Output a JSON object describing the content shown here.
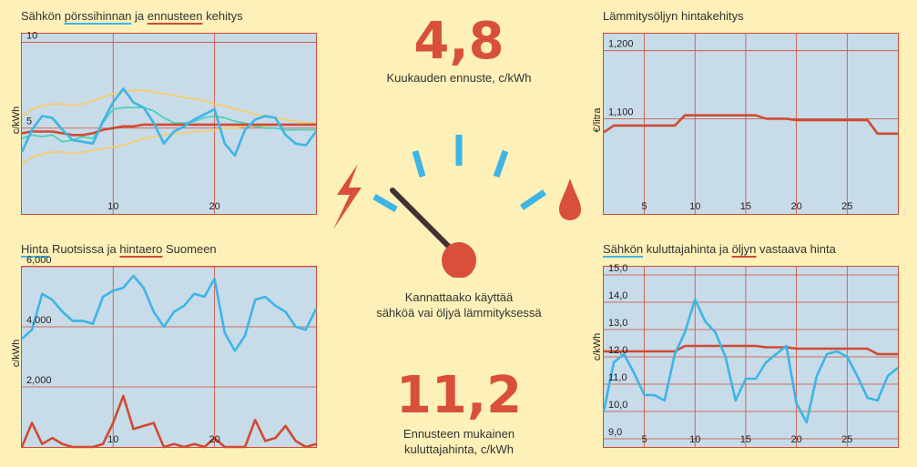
{
  "colors": {
    "blue": "#3db5e5",
    "red": "#cf4b34",
    "yellow": "#f4cd6c",
    "teal": "#4ad2c0",
    "panel": "#c8dbe8",
    "bg": "#fdf0b8"
  },
  "center": {
    "month_forecast_value": "4,8",
    "month_forecast_label": "Kuukauden ennuste, c/kWh",
    "gauge_question_line1": "Kannattaako käyttää",
    "gauge_question_line2": "sähköä vai öljyä lämmityksessä",
    "consumer_price_value": "11,2",
    "consumer_price_line1": "Ennusteen mukainen",
    "consumer_price_line2": "kuluttajahinta, c/kWh",
    "gauge_fraction": 0.2,
    "icons": {
      "left": "lightning-icon",
      "right": "oil-drop-icon"
    }
  },
  "chart_data": [
    {
      "id": "c1",
      "type": "line",
      "title_parts": [
        {
          "text": "Sähkön ",
          "u": ""
        },
        {
          "text": "pörssihinnan",
          "u": "blue"
        },
        {
          "text": " ja ",
          "u": ""
        },
        {
          "text": "ennusteen",
          "u": "red"
        },
        {
          "text": " kehitys",
          "u": ""
        }
      ],
      "ylabel": "c/kWh",
      "xlim": [
        1,
        30
      ],
      "ylim": [
        0,
        10.5
      ],
      "xticks": [
        10,
        20
      ],
      "yticks": [
        5,
        10
      ],
      "series": [
        {
          "color": "yellow",
          "x": [
            1,
            2,
            3,
            4,
            5,
            6,
            7,
            8,
            9,
            10,
            11,
            12,
            13,
            14,
            15,
            16,
            17,
            18,
            19,
            20,
            21,
            22,
            23,
            24,
            25,
            26,
            27,
            28,
            29,
            30
          ],
          "y": [
            5.7,
            6.1,
            6.3,
            6.4,
            6.4,
            6.3,
            6.4,
            6.6,
            6.8,
            7.0,
            7.1,
            7.2,
            7.2,
            7.1,
            7.0,
            6.9,
            6.8,
            6.7,
            6.6,
            6.4,
            6.3,
            6.1,
            6.0,
            5.8,
            5.7,
            5.6,
            5.5,
            5.4,
            5.3,
            5.3
          ]
        },
        {
          "color": "yellow",
          "x": [
            1,
            2,
            3,
            4,
            5,
            6,
            7,
            8,
            9,
            10,
            11,
            12,
            13,
            14,
            15,
            16,
            17,
            18,
            19,
            20,
            21,
            22,
            23,
            24,
            25,
            26,
            27,
            28,
            29,
            30
          ],
          "y": [
            2.9,
            3.3,
            3.5,
            3.6,
            3.6,
            3.5,
            3.6,
            3.7,
            3.8,
            3.9,
            4.0,
            4.2,
            4.4,
            4.5,
            4.6,
            4.7,
            4.7,
            4.8,
            4.8,
            4.9,
            5.0,
            5.0,
            5.1,
            5.1,
            5.1,
            5.2,
            5.2,
            5.2,
            5.2,
            5.2
          ]
        },
        {
          "color": "teal",
          "x": [
            1,
            2,
            3,
            4,
            5,
            6,
            7,
            8,
            9,
            10,
            11,
            12,
            13,
            14,
            15,
            16,
            17,
            18,
            19,
            20,
            21,
            22,
            23,
            24,
            25,
            26,
            27,
            28,
            29,
            30
          ],
          "y": [
            4.4,
            4.6,
            4.5,
            4.6,
            4.2,
            4.3,
            4.5,
            4.4,
            5.3,
            6.1,
            6.2,
            6.2,
            6.2,
            6.0,
            5.6,
            5.3,
            5.3,
            5.4,
            5.6,
            5.7,
            5.6,
            5.4,
            5.3,
            5.1,
            5.0,
            5.0,
            4.9,
            4.9,
            4.9,
            4.9
          ]
        },
        {
          "color": "red",
          "x": [
            1,
            2,
            3,
            4,
            5,
            6,
            7,
            8,
            9,
            10,
            11,
            12,
            13,
            14,
            15,
            16,
            17,
            18,
            19,
            20,
            21,
            22,
            23,
            24,
            25,
            26,
            27,
            28,
            29,
            30
          ],
          "y": [
            4.7,
            4.8,
            4.8,
            4.8,
            4.7,
            4.6,
            4.6,
            4.7,
            4.9,
            5.0,
            5.1,
            5.1,
            5.2,
            5.2,
            5.2,
            5.2,
            5.2,
            5.2,
            5.2,
            5.2,
            5.2,
            5.2,
            5.2,
            5.2,
            5.2,
            5.2,
            5.2,
            5.2,
            5.2,
            5.2
          ]
        },
        {
          "color": "blue",
          "x": [
            1,
            2,
            3,
            4,
            5,
            6,
            7,
            8,
            9,
            10,
            11,
            12,
            13,
            14,
            15,
            16,
            17,
            18,
            19,
            20,
            21,
            22,
            23,
            24,
            25,
            26,
            27,
            28,
            29,
            30
          ],
          "y": [
            3.6,
            4.9,
            5.7,
            5.6,
            4.9,
            4.3,
            4.2,
            4.1,
            5.4,
            6.5,
            7.3,
            6.5,
            6.2,
            5.3,
            4.1,
            4.8,
            5.1,
            5.5,
            5.8,
            6.1,
            4.1,
            3.4,
            4.9,
            5.5,
            5.7,
            5.6,
            4.6,
            4.1,
            4.0,
            4.8
          ]
        }
      ]
    },
    {
      "id": "c2",
      "type": "line",
      "title_parts": [
        {
          "text": "Lämmitysöljyn hintakehitys",
          "u": ""
        }
      ],
      "ylabel": "€/litra",
      "xlim": [
        1,
        30
      ],
      "ylim": [
        0.96,
        1.225
      ],
      "xticks": [
        5,
        10,
        15,
        20,
        25
      ],
      "yticks": [
        1.1,
        1.2
      ],
      "ytick_labels": [
        "1,100",
        "1,200"
      ],
      "series": [
        {
          "color": "red",
          "x": [
            1,
            2,
            3,
            4,
            5,
            6,
            7,
            8,
            9,
            10,
            11,
            12,
            13,
            14,
            15,
            16,
            17,
            18,
            19,
            20,
            21,
            22,
            23,
            24,
            25,
            26,
            27,
            28,
            29,
            30
          ],
          "y": [
            1.08,
            1.09,
            1.09,
            1.09,
            1.09,
            1.09,
            1.09,
            1.09,
            1.105,
            1.105,
            1.105,
            1.105,
            1.105,
            1.105,
            1.105,
            1.105,
            1.1,
            1.1,
            1.1,
            1.098,
            1.098,
            1.098,
            1.098,
            1.098,
            1.098,
            1.098,
            1.098,
            1.078,
            1.078,
            1.078
          ]
        }
      ]
    },
    {
      "id": "c3",
      "type": "line",
      "title_parts": [
        {
          "text": "Hinta",
          "u": "blue"
        },
        {
          "text": " Ruotsissa ja ",
          "u": ""
        },
        {
          "text": "hintaero",
          "u": "red"
        },
        {
          "text": " Suomeen",
          "u": ""
        }
      ],
      "ylabel": "c/kWh",
      "xlim": [
        1,
        30
      ],
      "ylim": [
        0,
        6.0
      ],
      "xticks": [
        10,
        20
      ],
      "yticks": [
        2,
        4,
        6
      ],
      "ytick_labels": [
        "2,000",
        "4,000",
        "6,000"
      ],
      "series": [
        {
          "color": "blue",
          "x": [
            1,
            2,
            3,
            4,
            5,
            6,
            7,
            8,
            9,
            10,
            11,
            12,
            13,
            14,
            15,
            16,
            17,
            18,
            19,
            20,
            21,
            22,
            23,
            24,
            25,
            26,
            27,
            28,
            29,
            30
          ],
          "y": [
            3.6,
            3.9,
            5.1,
            4.9,
            4.5,
            4.2,
            4.2,
            4.1,
            5.0,
            5.2,
            5.3,
            5.7,
            5.3,
            4.5,
            4.0,
            4.5,
            4.7,
            5.1,
            5.0,
            5.6,
            3.8,
            3.2,
            3.7,
            4.9,
            5.0,
            4.7,
            4.5,
            4.0,
            3.9,
            4.6
          ]
        },
        {
          "color": "red",
          "x": [
            1,
            2,
            3,
            4,
            5,
            6,
            7,
            8,
            9,
            10,
            11,
            12,
            13,
            14,
            15,
            16,
            17,
            18,
            19,
            20,
            21,
            22,
            23,
            24,
            25,
            26,
            27,
            28,
            29,
            30
          ],
          "y": [
            0.0,
            0.8,
            0.1,
            0.3,
            0.1,
            0.0,
            0.0,
            0.0,
            0.1,
            0.8,
            1.7,
            0.6,
            0.7,
            0.8,
            0.0,
            0.1,
            0.0,
            0.1,
            0.0,
            0.3,
            0.0,
            0.0,
            0.0,
            0.9,
            0.2,
            0.3,
            0.7,
            0.2,
            0.0,
            0.1
          ]
        }
      ]
    },
    {
      "id": "c4",
      "type": "line",
      "title_parts": [
        {
          "text": "Sähkön",
          "u": "blue"
        },
        {
          "text": " kuluttajahinta ja ",
          "u": ""
        },
        {
          "text": "öljyn",
          "u": "red"
        },
        {
          "text": " vastaava hinta",
          "u": ""
        }
      ],
      "ylabel": "c/kWh",
      "xlim": [
        1,
        30
      ],
      "ylim": [
        8.7,
        15.3
      ],
      "xticks": [
        5,
        10,
        15,
        20,
        25
      ],
      "yticks": [
        9,
        10,
        11,
        12,
        13,
        14,
        15
      ],
      "ytick_labels": [
        "9,0",
        "10,0",
        "11,0",
        "12,0",
        "13,0",
        "14,0",
        "15,0"
      ],
      "series": [
        {
          "color": "red",
          "x": [
            1,
            2,
            3,
            4,
            5,
            6,
            7,
            8,
            9,
            10,
            11,
            12,
            13,
            14,
            15,
            16,
            17,
            18,
            19,
            20,
            21,
            22,
            23,
            24,
            25,
            26,
            27,
            28,
            29,
            30
          ],
          "y": [
            12.2,
            12.2,
            12.2,
            12.2,
            12.2,
            12.2,
            12.2,
            12.2,
            12.4,
            12.4,
            12.4,
            12.4,
            12.4,
            12.4,
            12.4,
            12.4,
            12.35,
            12.35,
            12.35,
            12.3,
            12.3,
            12.3,
            12.3,
            12.3,
            12.3,
            12.3,
            12.3,
            12.1,
            12.1,
            12.1
          ]
        },
        {
          "color": "blue",
          "x": [
            1,
            2,
            3,
            4,
            5,
            6,
            7,
            8,
            9,
            10,
            11,
            12,
            13,
            14,
            15,
            16,
            17,
            18,
            19,
            20,
            21,
            22,
            23,
            24,
            25,
            26,
            27,
            28,
            29,
            30
          ],
          "y": [
            10.0,
            11.8,
            12.1,
            11.4,
            10.6,
            10.6,
            10.4,
            12.1,
            12.9,
            14.1,
            13.3,
            12.9,
            12.0,
            10.4,
            11.2,
            11.2,
            11.8,
            12.1,
            12.4,
            10.3,
            9.6,
            11.3,
            12.1,
            12.2,
            12.0,
            11.3,
            10.5,
            10.4,
            11.3,
            11.6
          ]
        }
      ]
    }
  ]
}
